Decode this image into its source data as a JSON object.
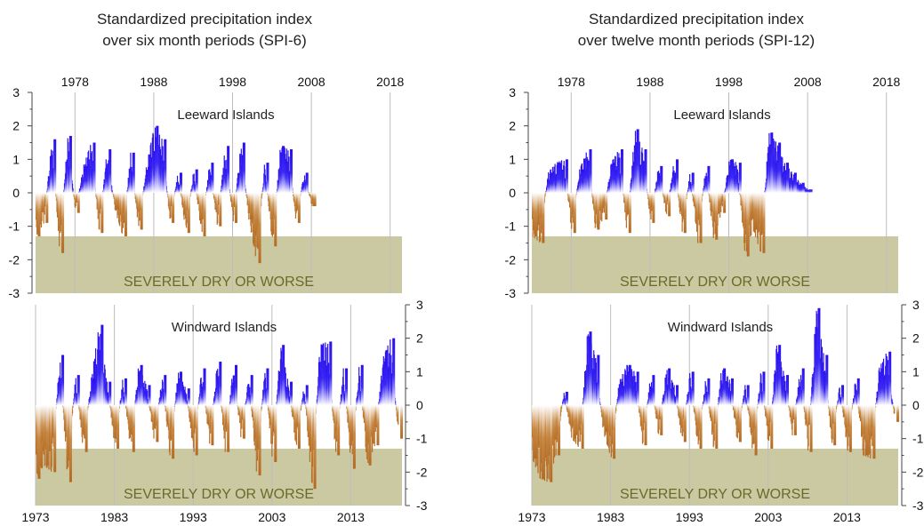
{
  "chart_data": [
    {
      "type": "area",
      "title_line1": "Standardized precipitation index",
      "title_line2": "over six month periods (SPI-6)",
      "region": "Leeward Islands",
      "band_label": "SEVERELY DRY OR WORSE",
      "band_range": [
        -3,
        -1.3
      ],
      "ylim": [
        -3,
        3
      ],
      "y_ticks": [
        "3",
        "2",
        "1",
        "0",
        "-1",
        "-2",
        "-3"
      ],
      "x_ticks": [
        "1978",
        "1988",
        "1998",
        "2008",
        "2018"
      ],
      "x_tick_years": [
        1978,
        1988,
        1998,
        2008,
        2018
      ],
      "xlim": [
        1973,
        2019.5
      ],
      "data_end": 2008.3,
      "colors": {
        "wet": "#2a0ff0",
        "dry": "#b8732c"
      },
      "series": [
        {
          "x": [
            1973,
            1974,
            1975,
            1976,
            1977,
            1978,
            1979,
            1980,
            1981,
            1982,
            1983,
            1984,
            1985,
            1986,
            1987,
            1988,
            1989,
            1990,
            1991,
            1992,
            1993,
            1994,
            1995,
            1996,
            1997,
            1998,
            1999,
            2000,
            2001,
            2002,
            2003,
            2004,
            2005,
            2006,
            2007,
            2008
          ],
          "y": [
            -1.3,
            -0.9,
            1.6,
            -1.8,
            1.7,
            -0.6,
            0.8,
            1.5,
            -1.2,
            1.3,
            -0.5,
            -1.3,
            1.2,
            -1.1,
            0.8,
            2.0,
            1.6,
            -0.9,
            0.6,
            -1.2,
            0.7,
            -1.3,
            0.9,
            -1.0,
            1.4,
            -0.9,
            1.5,
            -0.8,
            -2.1,
            0.9,
            -1.6,
            1.4,
            1.3,
            -0.9,
            0.6,
            -0.4
          ]
        }
      ]
    },
    {
      "type": "area",
      "region": "Windward Islands",
      "band_label": "SEVERELY DRY OR WORSE",
      "band_range": [
        -3,
        -1.3
      ],
      "ylim": [
        -3,
        3
      ],
      "y_ticks": [
        "3",
        "2",
        "1",
        "0",
        "-1",
        "-2",
        "-3"
      ],
      "x_ticks": [
        "1973",
        "1983",
        "1993",
        "2003",
        "2013"
      ],
      "x_tick_years": [
        1973,
        1983,
        1993,
        2003,
        2013
      ],
      "xlim": [
        1973,
        2019.5
      ],
      "data_end": 2019,
      "colors": {
        "wet": "#2a0ff0",
        "dry": "#b8732c"
      },
      "series": [
        {
          "x": [
            1973,
            1974,
            1975,
            1976,
            1977,
            1978,
            1979,
            1980,
            1981,
            1982,
            1983,
            1984,
            1985,
            1986,
            1987,
            1988,
            1989,
            1990,
            1991,
            1992,
            1993,
            1994,
            1995,
            1996,
            1997,
            1998,
            1999,
            2000,
            2001,
            2002,
            2003,
            2004,
            2005,
            2006,
            2007,
            2008,
            2009,
            2010,
            2011,
            2012,
            2013,
            2014,
            2015,
            2016,
            2017,
            2018,
            2019
          ],
          "y": [
            -2.2,
            -1.8,
            -2.0,
            1.5,
            -2.3,
            0.9,
            -1.4,
            0.8,
            2.4,
            0.7,
            -1.3,
            0.8,
            -1.4,
            1.2,
            0.6,
            -1.1,
            0.9,
            -1.6,
            1.0,
            0.5,
            -1.5,
            1.1,
            -1.2,
            1.3,
            -1.4,
            1.2,
            -1.0,
            0.9,
            -2.1,
            1.1,
            -1.7,
            1.8,
            0.7,
            -1.3,
            0.6,
            -2.5,
            1.8,
            1.9,
            -1.5,
            1.1,
            -1.9,
            1.2,
            -1.8,
            -1.2,
            1.4,
            2.0,
            -1.0
          ]
        }
      ]
    },
    {
      "type": "area",
      "title_line1": "Standardized precipitation index",
      "title_line2": "over twelve month periods (SPI-12)",
      "region": "Leeward Islands",
      "band_label": "SEVERELY DRY OR WORSE",
      "band_range": [
        -3,
        -1.3
      ],
      "ylim": [
        -3,
        3
      ],
      "y_ticks": [
        "3",
        "2",
        "1",
        "0",
        "-1",
        "-2",
        "-3"
      ],
      "x_ticks": [
        "1978",
        "1988",
        "1998",
        "2008",
        "2018"
      ],
      "x_tick_years": [
        1978,
        1988,
        1998,
        2008,
        2018
      ],
      "xlim": [
        1973,
        2019.5
      ],
      "data_end": 2008.3,
      "colors": {
        "wet": "#2a0ff0",
        "dry": "#b8732c"
      },
      "series": [
        {
          "x": [
            1973,
            1974,
            1975,
            1976,
            1977,
            1978,
            1979,
            1980,
            1981,
            1982,
            1983,
            1984,
            1985,
            1986,
            1987,
            1988,
            1989,
            1990,
            1991,
            1992,
            1993,
            1994,
            1995,
            1996,
            1997,
            1998,
            1999,
            2000,
            2001,
            2002,
            2003,
            2004,
            2005,
            2006,
            2007,
            2008
          ],
          "y": [
            -1.3,
            -1.5,
            0.6,
            0.9,
            1.0,
            -1.2,
            0.7,
            1.3,
            -1.1,
            -0.8,
            0.9,
            1.3,
            -1.2,
            1.9,
            1.3,
            -0.9,
            0.8,
            -0.7,
            1.0,
            -1.2,
            0.6,
            -1.5,
            0.8,
            -1.4,
            -0.6,
            1.0,
            0.9,
            -1.9,
            -1.1,
            -1.8,
            1.8,
            1.5,
            0.9,
            0.6,
            0.3,
            0.1
          ]
        }
      ]
    },
    {
      "type": "area",
      "region": "Windward Islands",
      "band_label": "SEVERELY DRY OR WORSE",
      "band_range": [
        -3,
        -1.3
      ],
      "ylim": [
        -3,
        3
      ],
      "y_ticks": [
        "3",
        "2",
        "1",
        "0",
        "-1",
        "-2",
        "-3"
      ],
      "x_ticks": [
        "1973",
        "1983",
        "1993",
        "2003",
        "2013"
      ],
      "x_tick_years": [
        1973,
        1983,
        1993,
        2003,
        2013
      ],
      "xlim": [
        1973,
        2019.5
      ],
      "data_end": 2019,
      "colors": {
        "wet": "#2a0ff0",
        "dry": "#b8732c"
      },
      "series": [
        {
          "x": [
            1973,
            1974,
            1975,
            1976,
            1977,
            1978,
            1979,
            1980,
            1981,
            1982,
            1983,
            1984,
            1985,
            1986,
            1987,
            1988,
            1989,
            1990,
            1991,
            1992,
            1993,
            1994,
            1995,
            1996,
            1997,
            1998,
            1999,
            2000,
            2001,
            2002,
            2003,
            2004,
            2005,
            2006,
            2007,
            2008,
            2009,
            2010,
            2011,
            2012,
            2013,
            2014,
            2015,
            2016,
            2017,
            2018,
            2019
          ],
          "y": [
            -1.6,
            -2.2,
            -2.3,
            -1.5,
            0.4,
            -1.0,
            -1.3,
            2.2,
            1.5,
            -0.8,
            -1.6,
            0.7,
            1.2,
            1.0,
            -1.2,
            0.9,
            -0.9,
            1.1,
            0.6,
            -1.1,
            1.0,
            -1.3,
            0.8,
            -1.3,
            1.1,
            0.8,
            -1.1,
            0.6,
            -1.5,
            1.0,
            -1.3,
            1.8,
            0.9,
            -0.9,
            1.1,
            -1.4,
            2.9,
            1.5,
            -1.2,
            0.6,
            -1.4,
            0.8,
            -1.5,
            -1.6,
            1.1,
            1.6,
            -0.5
          ]
        }
      ]
    }
  ]
}
